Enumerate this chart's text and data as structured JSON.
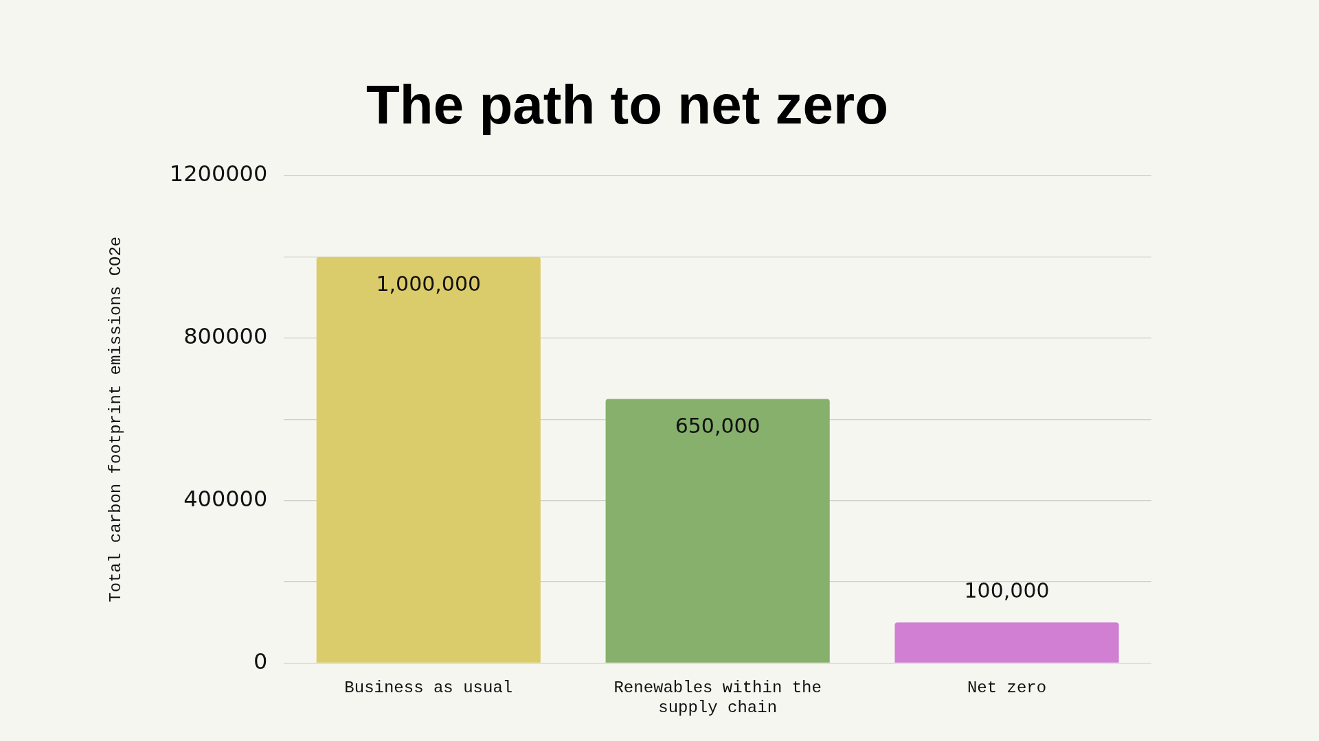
{
  "chart_data": {
    "type": "bar",
    "title": "The path to net zero",
    "ylabel": "Total carbon footprint emissions CO2e",
    "categories": [
      "Business as usual",
      "Renewables within the supply chain",
      "Net zero"
    ],
    "values": [
      1000000,
      650000,
      100000
    ],
    "colors": [
      "#dbcc6b",
      "#86b06c",
      "#d07fd3"
    ],
    "value_labels": [
      "1,000,000",
      "650,000",
      "100,000"
    ],
    "ylim": [
      0,
      1200000
    ],
    "yticks": [
      0,
      {
        "value": 200000,
        "label": null
      },
      400000,
      {
        "value": 600000,
        "label": null
      },
      800000,
      {
        "value": 1000000,
        "label": null
      },
      1200000
    ],
    "grid": "y",
    "legend": false
  }
}
